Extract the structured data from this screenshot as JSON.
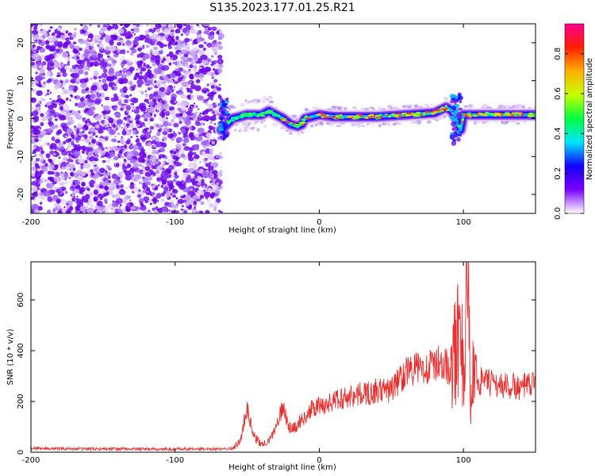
{
  "chart_data": [
    {
      "type": "heatmap",
      "title": "S135.2023.177.01.25.R21",
      "xlabel": "Height of straight line (km)",
      "ylabel": "Frequency (Hz)",
      "xlim": [
        -200,
        150
      ],
      "ylim": [
        -25,
        25
      ],
      "xticks": [
        "-200",
        "-100",
        "0",
        "100"
      ],
      "yticks": [
        "-20",
        "-10",
        "0",
        "10",
        "20"
      ],
      "colorbar": {
        "label": "Normalized spectral amplitude",
        "range": [
          0,
          0.95
        ],
        "ticks": [
          "0.0",
          "0.2",
          "0.4",
          "0.6",
          "0.8"
        ],
        "colors": [
          "#ffffff",
          "#7b00ff",
          "#1400ff",
          "#00e5ff",
          "#00ff40",
          "#c8ff00",
          "#ffb000",
          "#ff2000",
          "#ff0090"
        ]
      },
      "noise_region_x": [
        -200,
        -68
      ],
      "signal_track": {
        "x": [
          -68,
          -60,
          -50,
          -40,
          -35,
          -30,
          -25,
          -20,
          -15,
          -12,
          -10,
          -5,
          0,
          10,
          20,
          40,
          60,
          80,
          88,
          92,
          95,
          98,
          100,
          110,
          130,
          150
        ],
        "y": [
          -3,
          0,
          1,
          1,
          2,
          1,
          0,
          -1.5,
          -2,
          -1.5,
          0,
          0.5,
          1,
          0.5,
          0.5,
          0.5,
          1,
          1.5,
          3,
          2,
          0,
          -3,
          1,
          1,
          1,
          1
        ]
      },
      "grid": false
    },
    {
      "type": "line",
      "xlabel": "Height of straight line (km)",
      "ylabel": "SNR (10 * v/v)",
      "xlim": [
        -200,
        150
      ],
      "ylim": [
        0,
        750
      ],
      "xticks": [
        "-200",
        "-100",
        "0",
        "100"
      ],
      "yticks": [
        "0",
        "200",
        "400",
        "600"
      ],
      "line_color": "#e83030",
      "series": [
        {
          "x": [
            -200,
            -180,
            -160,
            -140,
            -120,
            -100,
            -80,
            -60,
            -55,
            -50,
            -48,
            -45,
            -40,
            -35,
            -30,
            -25,
            -22,
            -20,
            -15,
            -10,
            -5,
            0,
            10,
            20,
            30,
            40,
            50,
            55,
            60,
            70,
            80,
            85,
            90,
            95,
            98,
            100,
            103,
            105,
            108,
            110,
            120,
            130,
            140,
            150
          ],
          "y": [
            15,
            14,
            13,
            13,
            12,
            12,
            13,
            15,
            40,
            180,
            120,
            60,
            30,
            40,
            100,
            180,
            120,
            90,
            110,
            140,
            170,
            180,
            200,
            220,
            230,
            240,
            245,
            280,
            320,
            330,
            340,
            360,
            330,
            400,
            560,
            250,
            690,
            200,
            380,
            280,
            270,
            260,
            255,
            265
          ]
        }
      ],
      "grid": false
    }
  ]
}
